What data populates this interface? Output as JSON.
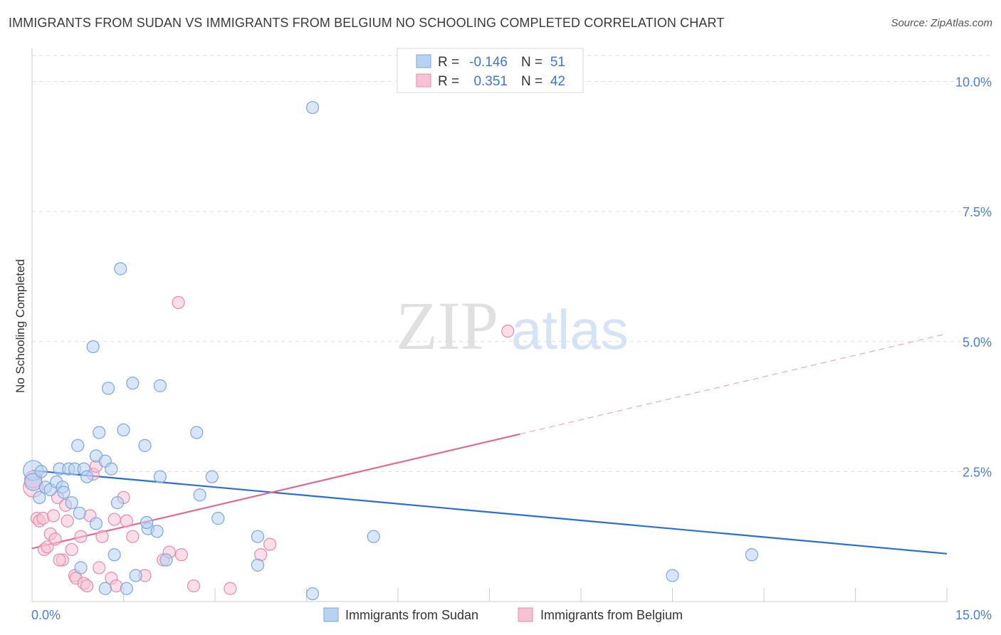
{
  "title": "IMMIGRANTS FROM SUDAN VS IMMIGRANTS FROM BELGIUM NO SCHOOLING COMPLETED CORRELATION CHART",
  "source": "Source: ZipAtlas.com",
  "watermark": {
    "zip": "ZIP",
    "atlas": "atlas"
  },
  "colors": {
    "sudan_fill": "#b8d2f2",
    "sudan_stroke": "#7aa7e0",
    "sudan_line": "#2a6fd0",
    "belgium_fill": "#f7c3d4",
    "belgium_stroke": "#e98aab",
    "belgium_line": "#e06a94",
    "grid": "#dddddd",
    "tick": "#4a7fd0"
  },
  "legend": {
    "rows": [
      {
        "r_label": "R =",
        "r_value": "-0.146",
        "n_label": "N =",
        "n_value": "51"
      },
      {
        "r_label": "R =",
        "r_value": "0.351",
        "n_label": "N =",
        "n_value": "42"
      }
    ]
  },
  "chart_data": {
    "type": "scatter",
    "title": "IMMIGRANTS FROM SUDAN VS IMMIGRANTS FROM BELGIUM NO SCHOOLING COMPLETED CORRELATION CHART",
    "xlabel": "",
    "ylabel": "No Schooling Completed",
    "xlim": [
      0,
      15
    ],
    "ylim": [
      0,
      10.5
    ],
    "x_tick_labels": [
      "0.0%",
      "15.0%"
    ],
    "y_ticks": [
      2.5,
      5.0,
      7.5,
      10.0
    ],
    "y_tick_labels": [
      "2.5%",
      "5.0%",
      "7.5%",
      "10.0%"
    ],
    "grid": true,
    "legend_position": "top-center",
    "series": [
      {
        "name": "Immigrants from Sudan",
        "color": "#b8d2f2",
        "trend": {
          "x": [
            0,
            15
          ],
          "y": [
            2.52,
            0.92
          ]
        },
        "points": [
          {
            "x": 0.02,
            "y": 2.52,
            "size": 14
          },
          {
            "x": 0.02,
            "y": 2.3,
            "size": 12
          },
          {
            "x": 0.15,
            "y": 2.5
          },
          {
            "x": 0.12,
            "y": 2.0
          },
          {
            "x": 0.22,
            "y": 2.2
          },
          {
            "x": 0.3,
            "y": 2.15
          },
          {
            "x": 0.4,
            "y": 2.3
          },
          {
            "x": 0.45,
            "y": 2.55
          },
          {
            "x": 0.5,
            "y": 2.2
          },
          {
            "x": 0.6,
            "y": 2.55
          },
          {
            "x": 0.65,
            "y": 1.9
          },
          {
            "x": 0.7,
            "y": 2.55
          },
          {
            "x": 0.78,
            "y": 1.7
          },
          {
            "x": 0.75,
            "y": 3.0
          },
          {
            "x": 0.85,
            "y": 2.55
          },
          {
            "x": 0.9,
            "y": 2.4
          },
          {
            "x": 1.0,
            "y": 4.9
          },
          {
            "x": 1.05,
            "y": 1.5
          },
          {
            "x": 1.05,
            "y": 2.8
          },
          {
            "x": 1.1,
            "y": 3.25
          },
          {
            "x": 1.2,
            "y": 2.7
          },
          {
            "x": 1.25,
            "y": 4.1
          },
          {
            "x": 1.3,
            "y": 2.55
          },
          {
            "x": 1.35,
            "y": 0.9
          },
          {
            "x": 1.4,
            "y": 1.9
          },
          {
            "x": 1.45,
            "y": 6.4
          },
          {
            "x": 1.5,
            "y": 3.3
          },
          {
            "x": 1.65,
            "y": 4.2
          },
          {
            "x": 1.7,
            "y": 0.5
          },
          {
            "x": 1.85,
            "y": 3.0
          },
          {
            "x": 1.9,
            "y": 1.4
          },
          {
            "x": 2.05,
            "y": 1.35
          },
          {
            "x": 2.1,
            "y": 4.15
          },
          {
            "x": 2.1,
            "y": 2.4
          },
          {
            "x": 2.2,
            "y": 0.8
          },
          {
            "x": 2.7,
            "y": 3.25
          },
          {
            "x": 2.75,
            "y": 2.05
          },
          {
            "x": 2.95,
            "y": 2.4
          },
          {
            "x": 3.05,
            "y": 1.6
          },
          {
            "x": 3.7,
            "y": 1.25
          },
          {
            "x": 3.7,
            "y": 0.7
          },
          {
            "x": 4.6,
            "y": 0.15
          },
          {
            "x": 4.6,
            "y": 9.5
          },
          {
            "x": 5.6,
            "y": 1.25
          },
          {
            "x": 10.5,
            "y": 0.5
          },
          {
            "x": 11.8,
            "y": 0.9
          },
          {
            "x": 0.8,
            "y": 0.65
          },
          {
            "x": 1.2,
            "y": 0.25
          },
          {
            "x": 1.55,
            "y": 0.25
          },
          {
            "x": 1.88,
            "y": 1.52
          },
          {
            "x": 0.52,
            "y": 2.1
          }
        ]
      },
      {
        "name": "Immigrants from Belgium",
        "color": "#f7c3d4",
        "trend": {
          "x": [
            0,
            8
          ],
          "y": [
            1.02,
            3.22
          ]
        },
        "trend_extension": {
          "x": [
            8,
            15
          ],
          "y": [
            3.22,
            5.15
          ]
        },
        "points": [
          {
            "x": 0.02,
            "y": 2.2,
            "size": 14
          },
          {
            "x": 0.02,
            "y": 2.35,
            "size": 12
          },
          {
            "x": 0.08,
            "y": 1.6
          },
          {
            "x": 0.12,
            "y": 1.55
          },
          {
            "x": 0.18,
            "y": 1.6
          },
          {
            "x": 0.2,
            "y": 1.0
          },
          {
            "x": 0.25,
            "y": 1.05
          },
          {
            "x": 0.3,
            "y": 1.3
          },
          {
            "x": 0.35,
            "y": 1.65
          },
          {
            "x": 0.38,
            "y": 1.2
          },
          {
            "x": 0.42,
            "y": 2.0
          },
          {
            "x": 0.5,
            "y": 0.8
          },
          {
            "x": 0.55,
            "y": 1.85
          },
          {
            "x": 0.58,
            "y": 1.55
          },
          {
            "x": 0.65,
            "y": 1.0
          },
          {
            "x": 0.7,
            "y": 0.5
          },
          {
            "x": 0.72,
            "y": 0.45
          },
          {
            "x": 0.8,
            "y": 1.25
          },
          {
            "x": 0.85,
            "y": 0.35
          },
          {
            "x": 0.9,
            "y": 0.3
          },
          {
            "x": 0.95,
            "y": 1.65
          },
          {
            "x": 1.0,
            "y": 2.45
          },
          {
            "x": 1.05,
            "y": 2.6
          },
          {
            "x": 1.1,
            "y": 0.65
          },
          {
            "x": 1.15,
            "y": 1.25
          },
          {
            "x": 1.3,
            "y": 0.45
          },
          {
            "x": 1.38,
            "y": 0.3
          },
          {
            "x": 1.5,
            "y": 2.0
          },
          {
            "x": 1.55,
            "y": 1.55
          },
          {
            "x": 1.65,
            "y": 1.25
          },
          {
            "x": 1.85,
            "y": 0.5
          },
          {
            "x": 2.15,
            "y": 0.8
          },
          {
            "x": 2.25,
            "y": 0.95
          },
          {
            "x": 2.4,
            "y": 5.75
          },
          {
            "x": 2.45,
            "y": 0.9
          },
          {
            "x": 2.65,
            "y": 0.3
          },
          {
            "x": 3.25,
            "y": 0.25
          },
          {
            "x": 3.75,
            "y": 0.9
          },
          {
            "x": 3.9,
            "y": 1.1
          },
          {
            "x": 7.8,
            "y": 5.2
          },
          {
            "x": 0.45,
            "y": 0.8
          },
          {
            "x": 1.35,
            "y": 1.58
          }
        ]
      }
    ]
  }
}
